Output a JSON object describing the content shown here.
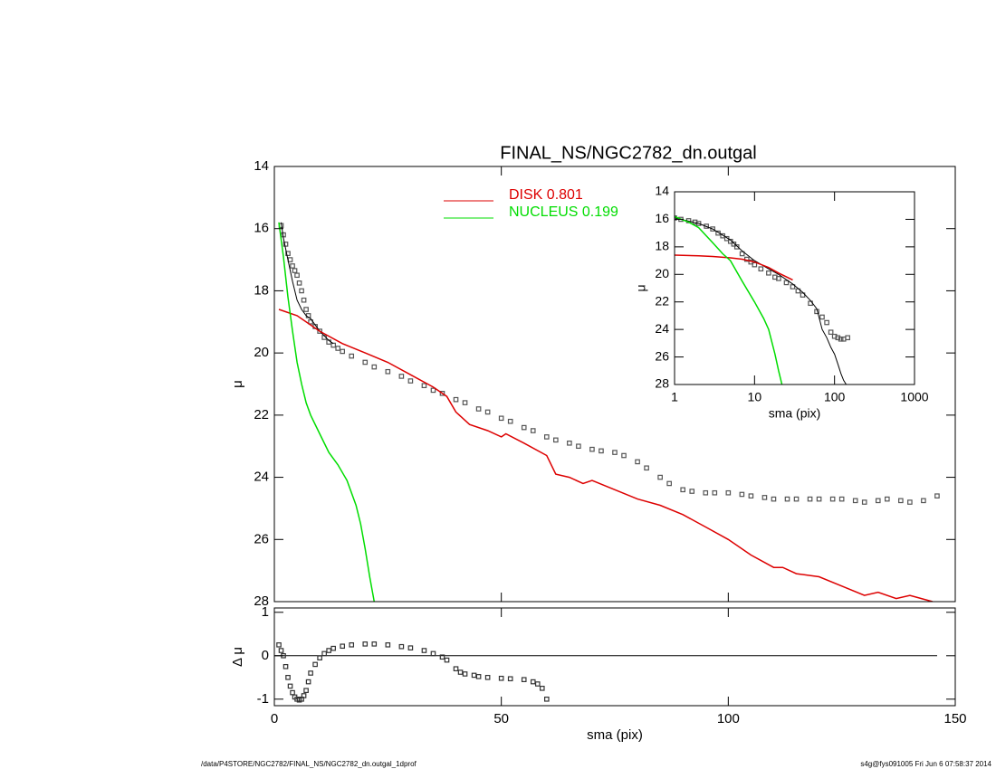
{
  "chart_data": [
    {
      "type": "line",
      "title": "FINAL_NS/NGC2782_dn.outgal",
      "ylabel": "μ",
      "xlim": [
        0,
        150
      ],
      "xticks": [
        0,
        50,
        100,
        150
      ],
      "xtick_labels": false,
      "ylim": [
        28,
        14
      ],
      "yticks": [
        14,
        16,
        18,
        20,
        22,
        24,
        26,
        28
      ],
      "legend": "top",
      "series": [
        {
          "style": "squares",
          "color": "#555555",
          "x": [
            1.5,
            2,
            2.5,
            3,
            3.5,
            4,
            4.5,
            5,
            5.5,
            6,
            6.5,
            7,
            7.5,
            8,
            9,
            10,
            11,
            12,
            13,
            14,
            15,
            17,
            20,
            22,
            25,
            28,
            30,
            33,
            35,
            37,
            40,
            42,
            45,
            47,
            50,
            52,
            55,
            57,
            60,
            62,
            65,
            67,
            70,
            72,
            75,
            77,
            80,
            82,
            85,
            87,
            90,
            92,
            95,
            97,
            100,
            103,
            105,
            108,
            110,
            113,
            115,
            118,
            120,
            123,
            125,
            128,
            130,
            133,
            135,
            138,
            140,
            143,
            146
          ],
          "values": [
            15.9,
            16.2,
            16.5,
            16.8,
            17.0,
            17.2,
            17.35,
            17.5,
            17.75,
            18.0,
            18.3,
            18.6,
            18.8,
            19.0,
            19.15,
            19.3,
            19.5,
            19.65,
            19.75,
            19.85,
            19.95,
            20.1,
            20.3,
            20.45,
            20.6,
            20.75,
            20.9,
            21.05,
            21.2,
            21.3,
            21.5,
            21.6,
            21.8,
            21.9,
            22.1,
            22.2,
            22.4,
            22.5,
            22.7,
            22.8,
            22.9,
            23.0,
            23.1,
            23.15,
            23.2,
            23.3,
            23.5,
            23.7,
            24.0,
            24.2,
            24.4,
            24.45,
            24.5,
            24.5,
            24.5,
            24.55,
            24.6,
            24.65,
            24.7,
            24.7,
            24.7,
            24.7,
            24.7,
            24.7,
            24.7,
            24.75,
            24.8,
            24.75,
            24.7,
            24.75,
            24.8,
            24.75,
            24.6
          ]
        },
        {
          "style": "line",
          "color": "#000000",
          "x": [
            1.5,
            2,
            3,
            4,
            5,
            6,
            7,
            8,
            10,
            12,
            13
          ],
          "values": [
            15.8,
            16.3,
            17.0,
            17.7,
            18.3,
            18.6,
            18.8,
            18.9,
            19.3,
            19.6,
            19.7
          ]
        },
        {
          "style": "line",
          "color": "#dd0000",
          "name": "DISK  0.801",
          "x": [
            1,
            5,
            10,
            15,
            20,
            25,
            30,
            35,
            38,
            40,
            43,
            47,
            50,
            51,
            55,
            60,
            62,
            65,
            68,
            70,
            75,
            80,
            85,
            90,
            95,
            100,
            105,
            110,
            112,
            115,
            120,
            125,
            130,
            133,
            137,
            140,
            145
          ],
          "values": [
            18.6,
            18.8,
            19.3,
            19.7,
            20.0,
            20.3,
            20.7,
            21.1,
            21.4,
            21.9,
            22.3,
            22.5,
            22.7,
            22.6,
            22.9,
            23.3,
            23.9,
            24.0,
            24.2,
            24.1,
            24.4,
            24.7,
            24.9,
            25.2,
            25.6,
            26.0,
            26.5,
            26.9,
            26.9,
            27.1,
            27.2,
            27.5,
            27.8,
            27.7,
            27.9,
            27.8,
            28.0
          ]
        },
        {
          "style": "line",
          "color": "#00dd00",
          "name": "NUCLEUS  0.199",
          "x": [
            1,
            2,
            3,
            4,
            5,
            6,
            7,
            8,
            10,
            12,
            14,
            16,
            18,
            19,
            20,
            21,
            22
          ],
          "values": [
            15.8,
            16.9,
            18.2,
            19.3,
            20.3,
            21.0,
            21.6,
            22.0,
            22.6,
            23.2,
            23.6,
            24.1,
            24.9,
            25.5,
            26.3,
            27.2,
            28.0
          ]
        }
      ]
    },
    {
      "type": "line",
      "xlabel": "sma (pix)",
      "ylabel": "Δ μ",
      "xlim": [
        0,
        150
      ],
      "xticks": [
        0,
        50,
        100,
        150
      ],
      "xtick_labels": true,
      "ylim": [
        -1.15,
        1.1
      ],
      "yticks": [
        -1,
        0,
        1
      ],
      "hline": 0,
      "series": [
        {
          "style": "squares",
          "color": "#333333",
          "x": [
            1,
            1.5,
            2,
            2.5,
            3,
            3.5,
            4,
            4.5,
            5,
            5.5,
            6,
            6.5,
            7,
            7.5,
            8,
            9,
            10,
            11,
            12,
            13,
            15,
            17,
            20,
            22,
            25,
            28,
            30,
            33,
            35,
            37,
            38,
            40,
            41,
            42,
            44,
            45,
            47,
            50,
            52,
            55,
            57,
            58,
            59,
            60
          ],
          "values": [
            0.25,
            0.12,
            0,
            -0.25,
            -0.5,
            -0.7,
            -0.85,
            -0.95,
            -1.0,
            -1.02,
            -1.0,
            -0.92,
            -0.8,
            -0.6,
            -0.4,
            -0.2,
            -0.05,
            0.05,
            0.12,
            0.17,
            0.22,
            0.25,
            0.27,
            0.27,
            0.25,
            0.21,
            0.18,
            0.12,
            0.05,
            -0.03,
            -0.1,
            -0.3,
            -0.38,
            -0.42,
            -0.45,
            -0.48,
            -0.5,
            -0.52,
            -0.53,
            -0.55,
            -0.6,
            -0.65,
            -0.75,
            -1.0
          ]
        }
      ]
    },
    {
      "type": "line",
      "xlabel": "sma (pix)",
      "ylabel": "μ",
      "xlog": true,
      "xlim": [
        1,
        1000
      ],
      "xticks": [
        1,
        10,
        100,
        1000
      ],
      "xtick_labels": true,
      "ylim": [
        28,
        14
      ],
      "yticks": [
        14,
        16,
        18,
        20,
        22,
        24,
        26,
        28
      ],
      "series": [
        {
          "style": "squares",
          "color": "#555555",
          "x": [
            1,
            1.2,
            1.5,
            1.8,
            2,
            2.5,
            3,
            3.5,
            4,
            4.5,
            5,
            5.5,
            6,
            7,
            8,
            9,
            10,
            12,
            15,
            18,
            20,
            25,
            30,
            35,
            40,
            50,
            60,
            70,
            80,
            90,
            100,
            110,
            120,
            130,
            146
          ],
          "values": [
            15.9,
            16.0,
            16.1,
            16.2,
            16.3,
            16.5,
            16.7,
            17.0,
            17.2,
            17.4,
            17.6,
            17.8,
            18.0,
            18.5,
            18.9,
            19.1,
            19.3,
            19.6,
            19.9,
            20.2,
            20.3,
            20.6,
            20.9,
            21.2,
            21.5,
            22.1,
            22.7,
            23.1,
            23.5,
            24.2,
            24.5,
            24.6,
            24.7,
            24.7,
            24.6
          ]
        },
        {
          "style": "line",
          "color": "#000000",
          "x": [
            1,
            2,
            3,
            5,
            7,
            10,
            15,
            20,
            30,
            40,
            50,
            60,
            70,
            80,
            90,
            100,
            110,
            120,
            130,
            140
          ],
          "values": [
            15.9,
            16.3,
            16.7,
            17.5,
            18.3,
            19.0,
            19.6,
            20.0,
            20.7,
            21.3,
            21.9,
            22.5,
            24.0,
            24.6,
            25.3,
            25.8,
            26.5,
            27.2,
            27.7,
            28.0
          ]
        },
        {
          "style": "line",
          "color": "#dd0000",
          "x": [
            1,
            2,
            3,
            5,
            7,
            10,
            15,
            20,
            30
          ],
          "values": [
            18.6,
            18.65,
            18.7,
            18.8,
            18.9,
            19.1,
            19.5,
            19.9,
            20.4
          ]
        },
        {
          "style": "line",
          "color": "#00dd00",
          "x": [
            1,
            1.5,
            2,
            3,
            4,
            5,
            7,
            10,
            13,
            15,
            18,
            20,
            22
          ],
          "values": [
            15.8,
            16.2,
            16.6,
            17.7,
            18.5,
            19.0,
            20.5,
            22.0,
            23.2,
            24.0,
            25.8,
            27.0,
            28.0
          ]
        }
      ]
    }
  ],
  "footer": {
    "left": "/data/P4STORE/NGC2782/FINAL_NS/NGC2782_dn.outgal_1dprof",
    "right": "s4g@fys091005  Fri Jun  6 07:58:37 2014"
  }
}
